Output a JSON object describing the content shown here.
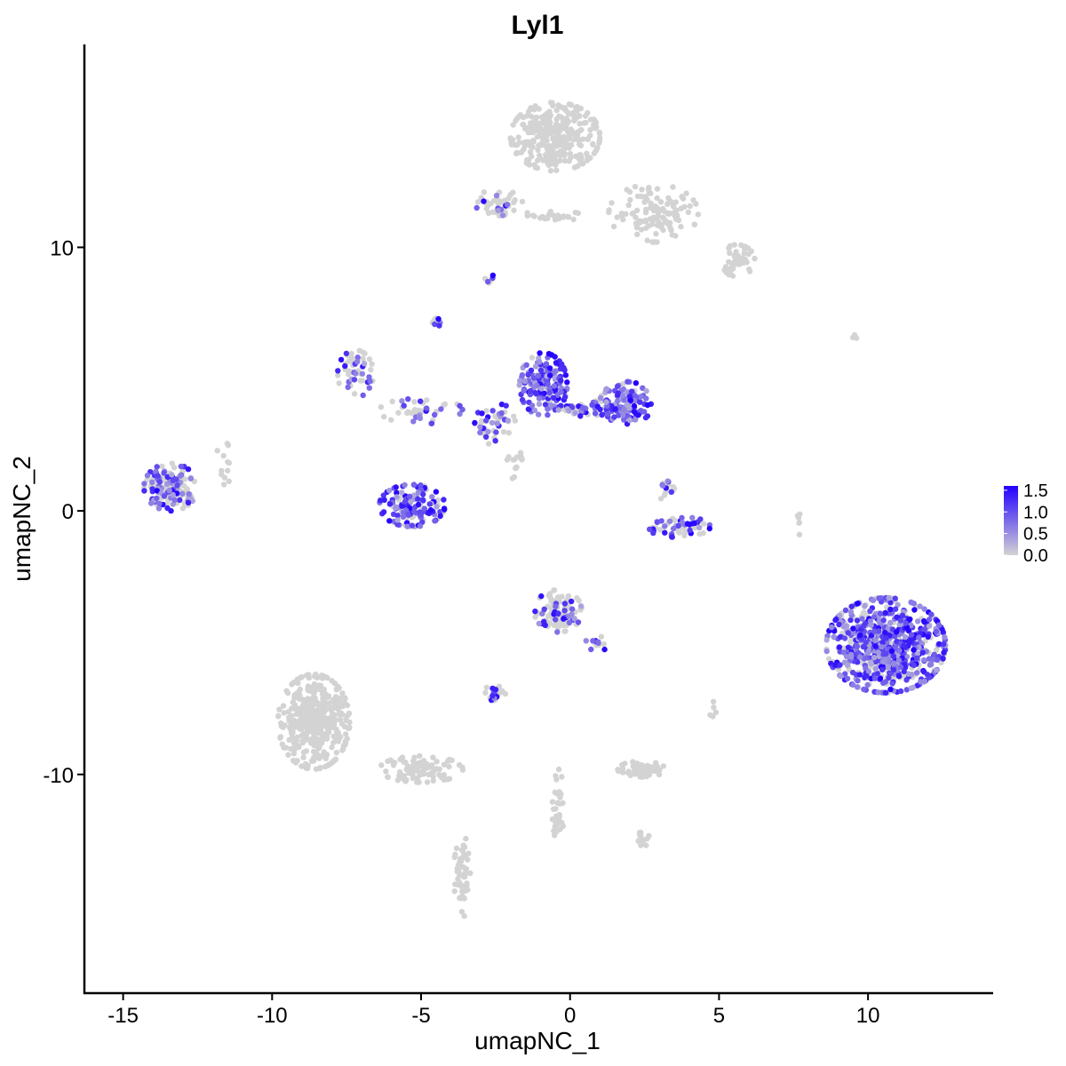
{
  "chart_data": {
    "type": "scatter",
    "title": "Lyl1",
    "xlabel": "umapNC_1",
    "ylabel": "umapNC_2",
    "xlim": [
      -16.3,
      14.2
    ],
    "ylim": [
      -18.3,
      17.7
    ],
    "x_ticks": [
      -15,
      -10,
      -5,
      0,
      5,
      10
    ],
    "x_tick_labels": [
      "-15",
      "-10",
      "-5",
      "0",
      "5",
      "10"
    ],
    "y_ticks": [
      -10,
      0,
      10
    ],
    "y_tick_labels": [
      "-10",
      "0",
      "10"
    ],
    "grid": false,
    "legend": {
      "placement": "right",
      "type": "colorbar",
      "labels": [
        "1.5",
        "1.0",
        "0.5",
        "0.0"
      ],
      "values": [
        1.5,
        1.0,
        0.5,
        0.0
      ],
      "range": [
        0,
        1.6
      ],
      "low_color": "#d3d3d3",
      "high_color": "#2200ff"
    },
    "point_color_low": "#d3d3d3",
    "point_color_high": "#2200ff",
    "clusters": [
      {
        "cx": -0.5,
        "cy": 14.2,
        "rx": 1.5,
        "ry": 1.3,
        "n": 320,
        "expr": 0.0
      },
      {
        "cx": 2.8,
        "cy": 11.3,
        "rx": 1.5,
        "ry": 1.1,
        "n": 120,
        "expr": 0.0
      },
      {
        "cx": 5.6,
        "cy": 9.5,
        "rx": 0.6,
        "ry": 0.6,
        "n": 55,
        "expr": 0.0
      },
      {
        "cx": -2.4,
        "cy": 11.7,
        "rx": 0.8,
        "ry": 0.5,
        "n": 45,
        "expr": 0.02
      },
      {
        "cx": -0.6,
        "cy": 11.2,
        "rx": 1.0,
        "ry": 0.2,
        "n": 25,
        "expr": 0.0
      },
      {
        "cx": -0.9,
        "cy": 4.8,
        "rx": 0.8,
        "ry": 1.2,
        "n": 170,
        "expr": 0.75
      },
      {
        "cx": 1.9,
        "cy": 4.1,
        "rx": 0.9,
        "ry": 0.8,
        "n": 120,
        "expr": 0.8
      },
      {
        "cx": 0.4,
        "cy": 3.9,
        "rx": 1.3,
        "ry": 0.3,
        "n": 60,
        "expr": 0.55
      },
      {
        "cx": -2.5,
        "cy": 3.3,
        "rx": 0.7,
        "ry": 0.8,
        "n": 45,
        "expr": 0.4
      },
      {
        "cx": -7.2,
        "cy": 5.2,
        "rx": 0.6,
        "ry": 0.9,
        "n": 55,
        "expr": 0.35
      },
      {
        "cx": -5.0,
        "cy": 3.8,
        "rx": 1.4,
        "ry": 0.5,
        "n": 45,
        "expr": 0.3
      },
      {
        "cx": -5.3,
        "cy": 0.2,
        "rx": 1.1,
        "ry": 0.8,
        "n": 140,
        "expr": 0.7
      },
      {
        "cx": 3.6,
        "cy": -0.6,
        "rx": 1.1,
        "ry": 0.4,
        "n": 60,
        "expr": 0.45
      },
      {
        "cx": 3.2,
        "cy": 0.9,
        "rx": 0.3,
        "ry": 0.5,
        "n": 15,
        "expr": 0.45
      },
      {
        "cx": -13.4,
        "cy": 0.9,
        "rx": 0.9,
        "ry": 0.9,
        "n": 150,
        "expr": 0.45
      },
      {
        "cx": 10.6,
        "cy": -5.1,
        "rx": 2.0,
        "ry": 1.8,
        "n": 700,
        "expr": 0.6
      },
      {
        "cx": -0.4,
        "cy": -3.8,
        "rx": 0.8,
        "ry": 0.8,
        "n": 100,
        "expr": 0.2
      },
      {
        "cx": -8.6,
        "cy": -8.0,
        "rx": 1.2,
        "ry": 1.8,
        "n": 420,
        "expr": 0.0
      },
      {
        "cx": -5.0,
        "cy": -9.8,
        "rx": 1.4,
        "ry": 0.5,
        "n": 90,
        "expr": 0.0
      },
      {
        "cx": -3.6,
        "cy": -13.8,
        "rx": 0.3,
        "ry": 1.6,
        "n": 55,
        "expr": 0.0
      },
      {
        "cx": 2.4,
        "cy": -9.8,
        "rx": 0.8,
        "ry": 0.3,
        "n": 60,
        "expr": 0.0
      },
      {
        "cx": -0.4,
        "cy": -11.2,
        "rx": 0.2,
        "ry": 1.4,
        "n": 40,
        "expr": 0.0
      },
      {
        "cx": 2.4,
        "cy": -12.5,
        "rx": 0.3,
        "ry": 0.3,
        "n": 15,
        "expr": 0.0
      },
      {
        "cx": -2.5,
        "cy": -6.9,
        "rx": 0.4,
        "ry": 0.3,
        "n": 25,
        "expr": 0.3
      },
      {
        "cx": 0.9,
        "cy": -5.0,
        "rx": 0.5,
        "ry": 0.3,
        "n": 15,
        "expr": 0.4
      },
      {
        "cx": -4.5,
        "cy": 7.2,
        "rx": 0.15,
        "ry": 0.25,
        "n": 8,
        "expr": 0.3
      },
      {
        "cx": -2.7,
        "cy": 8.8,
        "rx": 0.15,
        "ry": 0.2,
        "n": 6,
        "expr": 0.3
      },
      {
        "cx": 7.7,
        "cy": -0.5,
        "rx": 0.1,
        "ry": 0.4,
        "n": 6,
        "expr": 0.0
      },
      {
        "cx": 9.5,
        "cy": 6.6,
        "rx": 0.2,
        "ry": 0.1,
        "n": 4,
        "expr": 0.0
      },
      {
        "cx": -11.6,
        "cy": 1.8,
        "rx": 0.3,
        "ry": 0.8,
        "n": 12,
        "expr": 0.0
      },
      {
        "cx": 4.8,
        "cy": -7.5,
        "rx": 0.2,
        "ry": 0.3,
        "n": 5,
        "expr": 0.0
      },
      {
        "cx": -1.8,
        "cy": 1.8,
        "rx": 0.4,
        "ry": 0.6,
        "n": 15,
        "expr": 0.0
      }
    ]
  }
}
